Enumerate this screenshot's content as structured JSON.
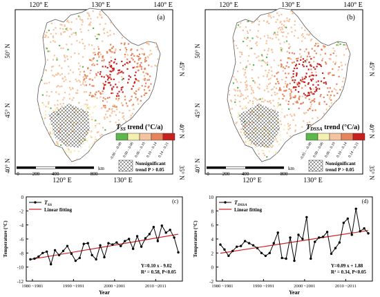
{
  "maps": [
    {
      "panel_label": "(a)",
      "title_var": "T",
      "title_sub": "SS",
      "title_tail": " trend (°C/a)",
      "top_ticks": [
        "120° E",
        "130° E",
        "140° E"
      ],
      "bottom_ticks": [
        "120° E",
        "130° E"
      ],
      "left_ticks": [
        "50° N",
        "45° N",
        "40° N"
      ],
      "right_ticks": [
        "45° N",
        "40° N",
        "35° N"
      ],
      "scalebar": [
        "0",
        "200",
        "400",
        "800"
      ],
      "scalebar_unit": "km",
      "legend_classes": [
        "-0.06 – -0.00",
        "0.00 – 0.06",
        "0.06 – 0.10",
        "0.10 – 0.14",
        "0.14 – 0.21"
      ],
      "legend_colors": [
        "#5cb84a",
        "#f3f0b0",
        "#f5c39e",
        "#e8845c",
        "#c8201e"
      ],
      "nonsig_label": [
        "Nonsignificant",
        "trend P > 0.05"
      ]
    },
    {
      "panel_label": "(b)",
      "title_var": "T",
      "title_sub": "DSSA",
      "title_tail": " trend (°C/a)",
      "top_ticks": [
        "120° E",
        "130° E",
        "140° E"
      ],
      "bottom_ticks": [
        "120° E",
        "130° E"
      ],
      "left_ticks": [
        "50° N",
        "45° N",
        "40° N"
      ],
      "right_ticks": [
        "45° N",
        "40° N",
        "35° N"
      ],
      "scalebar": [
        "0",
        "200",
        "400",
        "800"
      ],
      "scalebar_unit": "km",
      "legend_classes": [
        "-0.05 – -0.00",
        "0.00 – 0.06",
        "0.06 – 0.10",
        "0.10 – 0.14",
        "0.14 – 0.21"
      ],
      "legend_colors": [
        "#5cb84a",
        "#f3f0b0",
        "#f5c39e",
        "#e8845c",
        "#c8201e"
      ],
      "nonsig_label": [
        "Nonsignificant",
        "trend P > 0.05"
      ]
    }
  ],
  "chart_data": [
    {
      "type": "line",
      "panel_label": "(c)",
      "legend_var": "T",
      "legend_sub": "SS",
      "fit_label": "Linear fitting",
      "equation": "Y=0.10 x - 9.02",
      "stats": "R² = 0.58, P<0.05",
      "xlabel": "Year",
      "ylabel": "Temperature (°C)",
      "xlim": [
        1979,
        2017
      ],
      "ylim": [
        -12,
        0
      ],
      "yticks": [
        -12,
        -10,
        -8,
        -6,
        -4,
        -2,
        0
      ],
      "xtick_labels": [
        "1980 ~1981",
        "1990 ~1991",
        "2000 ~2001",
        "2010 ~2011"
      ],
      "x": [
        1980,
        1981,
        1982,
        1983,
        1984,
        1985,
        1986,
        1987,
        1988,
        1989,
        1990,
        1991,
        1992,
        1993,
        1994,
        1995,
        1996,
        1997,
        1998,
        1999,
        2000,
        2001,
        2002,
        2003,
        2004,
        2005,
        2006,
        2007,
        2008,
        2009,
        2010,
        2011,
        2012,
        2013,
        2014,
        2015,
        2016
      ],
      "values": [
        -8.9,
        -8.8,
        -8.5,
        -8.0,
        -7.8,
        -9.6,
        -7.6,
        -8.3,
        -7.7,
        -7.0,
        -8.1,
        -9.1,
        -8.7,
        -6.7,
        -6.6,
        -8.3,
        -8.9,
        -6.9,
        -8.6,
        -6.6,
        -6.8,
        -6.5,
        -7.0,
        -6.3,
        -6.0,
        -7.4,
        -5.6,
        -7.1,
        -5.9,
        -5.3,
        -4.3,
        -6.3,
        -4.1,
        -5.1,
        -4.7,
        -5.8,
        -7.9
      ],
      "fit": {
        "slope": 0.1,
        "intercept": -9.02
      },
      "series_color": "#000000",
      "fit_color": "#d42020"
    },
    {
      "type": "line",
      "panel_label": "(d)",
      "legend_var": "T",
      "legend_sub": "DSSA",
      "fit_label": "Linear fitting",
      "equation": "Y=0.09 x + 1.88",
      "stats": "R² = 0.34, P<0.05",
      "xlabel": "Year",
      "ylabel": "Temperature (°C)",
      "xlim": [
        1979,
        2017
      ],
      "ylim": [
        -2,
        10
      ],
      "yticks": [
        -2,
        0,
        2,
        4,
        6,
        8,
        10
      ],
      "xtick_labels": [
        "1980 ~1981",
        "1990 ~1991",
        "2000 ~2001",
        "2010 ~2011"
      ],
      "x": [
        1980,
        1981,
        1982,
        1983,
        1984,
        1985,
        1986,
        1987,
        1988,
        1989,
        1990,
        1991,
        1992,
        1993,
        1994,
        1995,
        1996,
        1997,
        1998,
        1999,
        2000,
        2001,
        2002,
        2003,
        2004,
        2005,
        2006,
        2007,
        2008,
        2009,
        2010,
        2011,
        2012,
        2013,
        2014,
        2015,
        2016
      ],
      "values": [
        3.2,
        2.5,
        1.6,
        2.3,
        2.9,
        3.0,
        3.7,
        3.4,
        3.1,
        2.7,
        2.0,
        1.6,
        2.0,
        3.4,
        4.9,
        1.3,
        1.2,
        4.2,
        0.9,
        4.6,
        4.0,
        7.1,
        1.2,
        3.6,
        4.2,
        4.3,
        5.0,
        1.9,
        2.7,
        3.5,
        6.3,
        6.9,
        4.6,
        8.3,
        5.1,
        5.5,
        4.8
      ],
      "fit": {
        "slope": 0.09,
        "intercept": 1.88
      },
      "series_color": "#000000",
      "fit_color": "#d42020"
    }
  ]
}
